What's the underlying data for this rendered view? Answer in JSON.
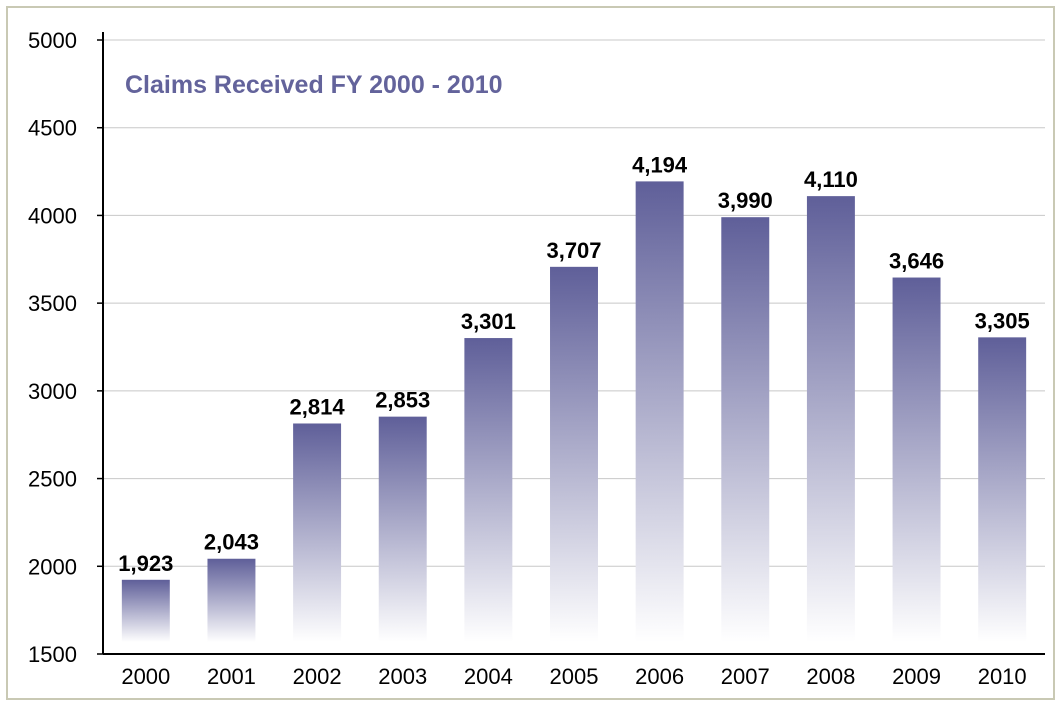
{
  "chart_data": {
    "type": "bar",
    "title": "Claims Received FY 2000 - 2010",
    "xlabel": "",
    "ylabel": "",
    "categories": [
      "2000",
      "2001",
      "2002",
      "2003",
      "2004",
      "2005",
      "2006",
      "2007",
      "2008",
      "2009",
      "2010"
    ],
    "values": [
      1923,
      2043,
      2814,
      2853,
      3301,
      3707,
      4194,
      3990,
      4110,
      3646,
      3305
    ],
    "value_labels": [
      "1,923",
      "2,043",
      "2,814",
      "2,853",
      "3,301",
      "3,707",
      "4,194",
      "3,990",
      "4,110",
      "3,646",
      "3,305"
    ],
    "ylim": [
      1500,
      5000
    ],
    "yticks": [
      "1500",
      "2000",
      "2500",
      "3000",
      "3500",
      "4000",
      "4500",
      "5000"
    ],
    "grid": true,
    "legend": "none",
    "colors": {
      "bar_top": "#5f5f99",
      "bar_bottom": "#ffffff",
      "grid": "#c8c8c8",
      "axis": "#000000",
      "title": "#63639b"
    }
  }
}
